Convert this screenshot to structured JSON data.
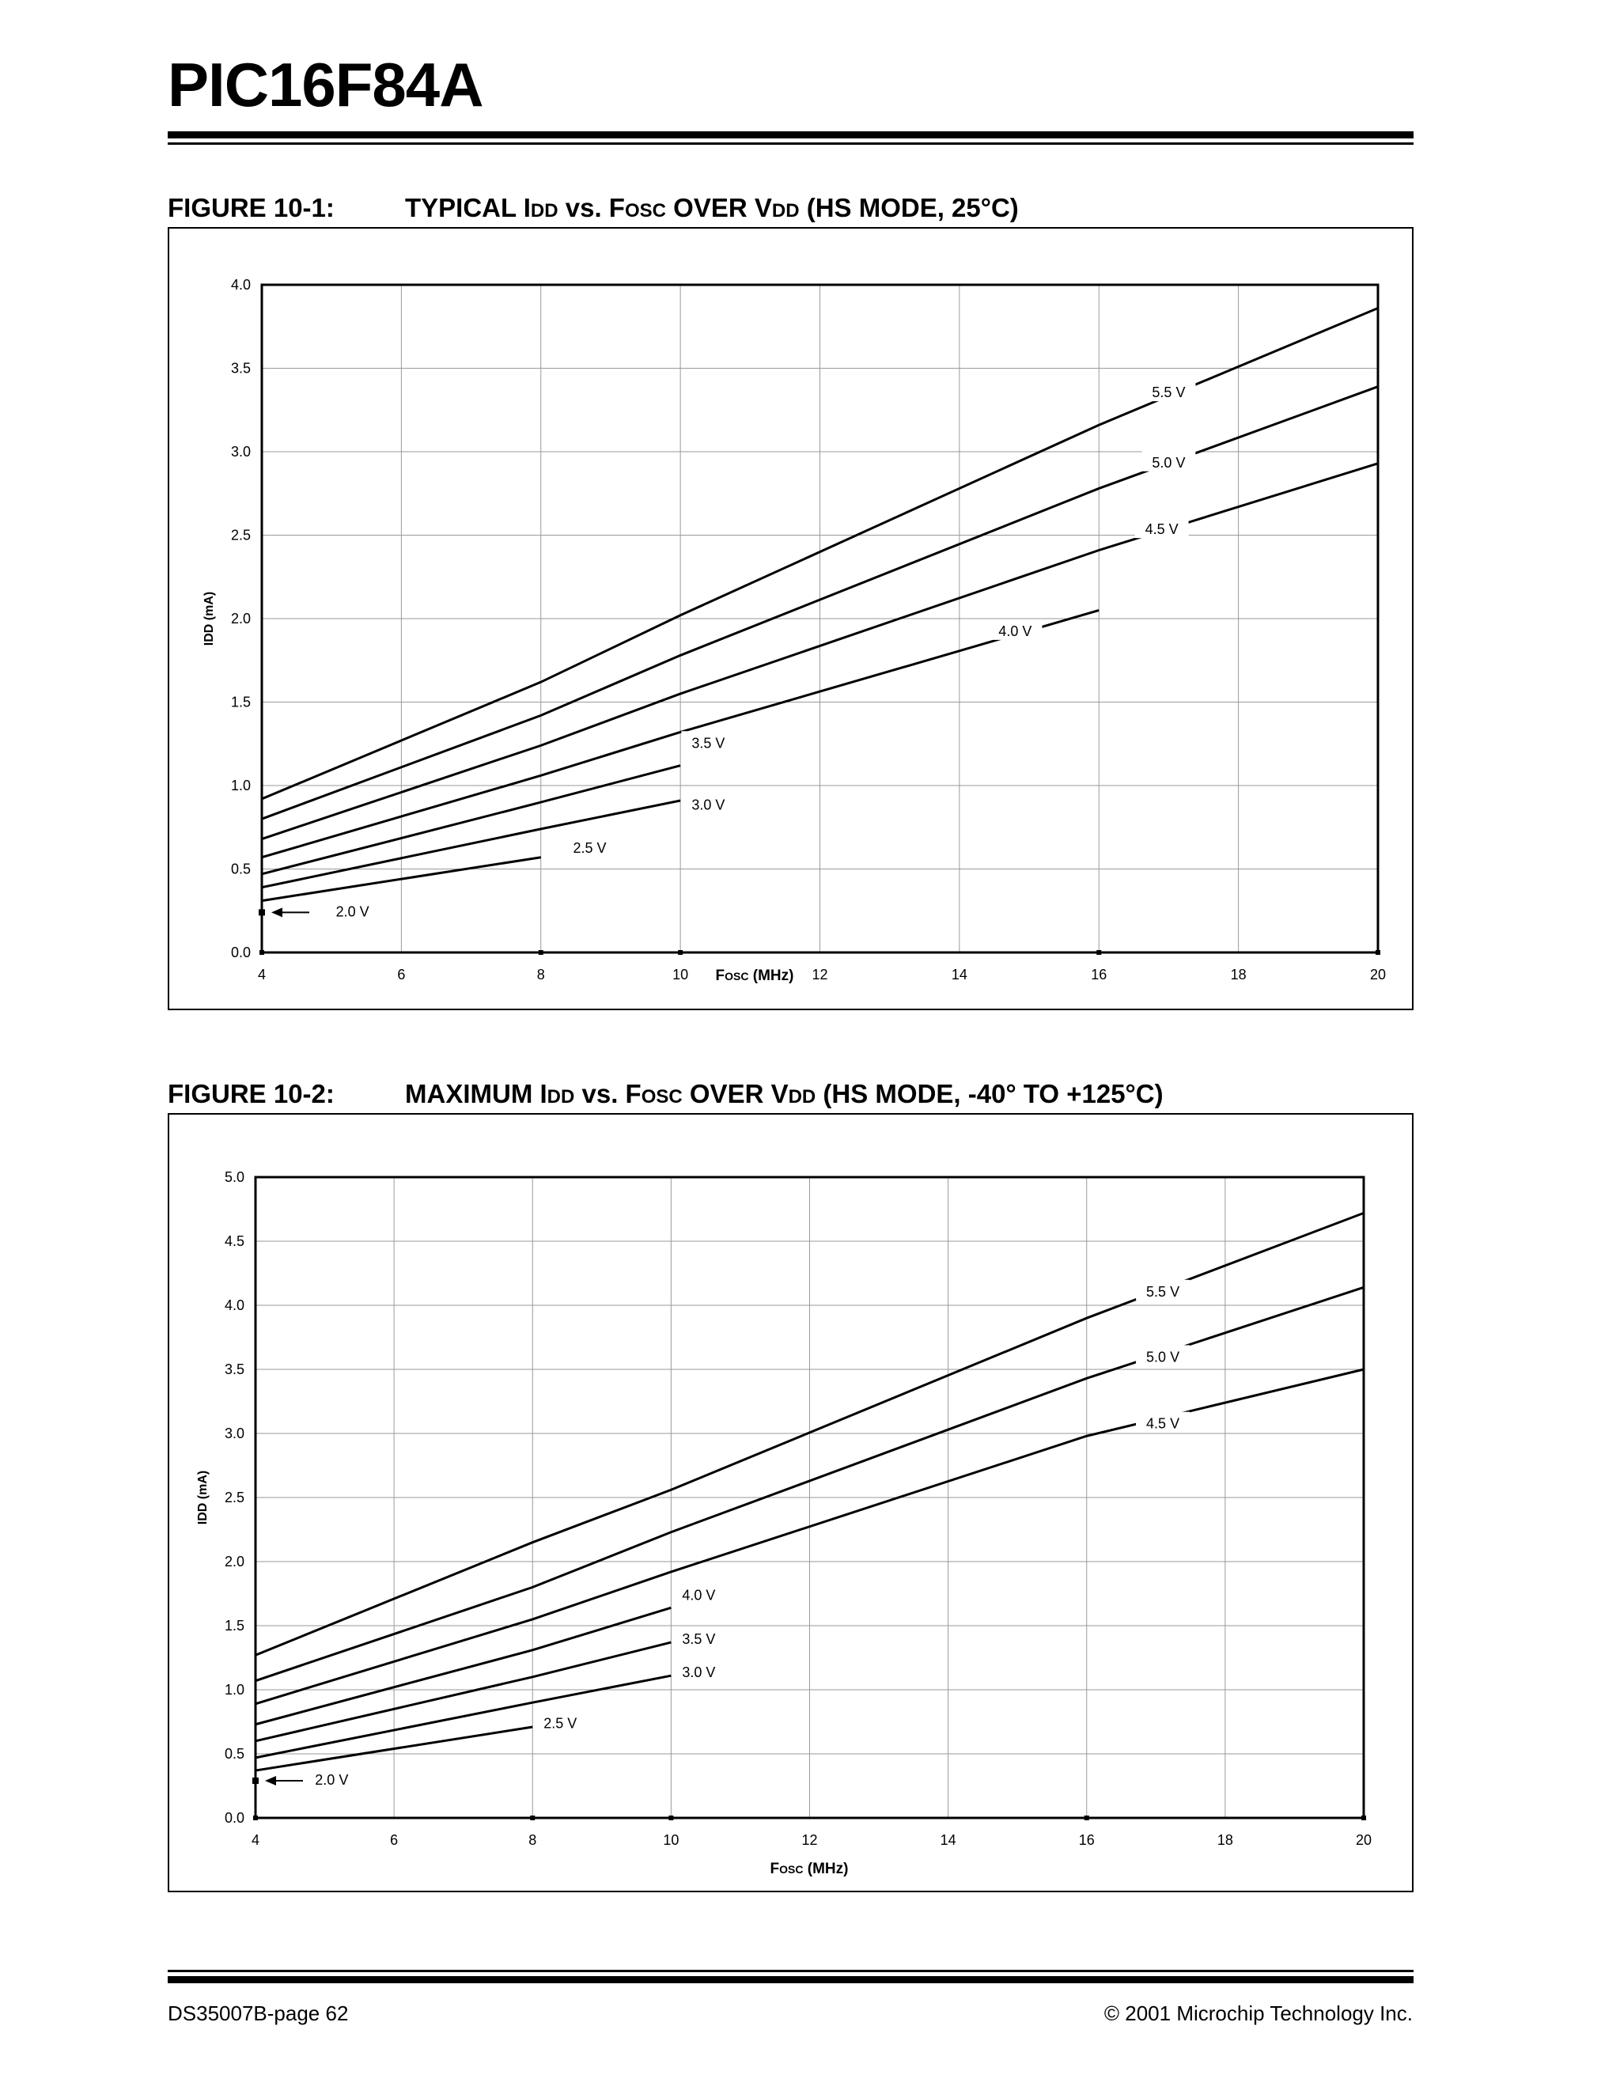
{
  "document": {
    "title": "PIC16F84A",
    "footer_left": "DS35007B-page 62",
    "footer_right": "© 2001 Microchip Technology Inc."
  },
  "figures": [
    {
      "number": "FIGURE 10-1:",
      "caption_parts": [
        "TYPICAL I",
        "DD",
        " vs. F",
        "OSC",
        " OVER V",
        "DD",
        " (HS MODE, 25°C)"
      ]
    },
    {
      "number": "FIGURE 10-2:",
      "caption_parts": [
        "MAXIMUM I",
        "DD",
        " vs. F",
        "OSC",
        " OVER V",
        "DD",
        " (HS MODE,  -40° TO +125°C)"
      ]
    }
  ],
  "chart_data": [
    {
      "type": "line",
      "title": "TYPICAL IDD vs. FOSC OVER VDD (HS MODE, 25°C)",
      "xlabel": "Fosc (MHz)",
      "ylabel": "IDD (mA)",
      "xlim": [
        4,
        20
      ],
      "ylim": [
        0,
        4.0
      ],
      "xticks": [
        4,
        6,
        8,
        10,
        12,
        14,
        16,
        18,
        20
      ],
      "yticks": [
        0.0,
        0.5,
        1.0,
        1.5,
        2.0,
        2.5,
        3.0,
        3.5,
        4.0
      ],
      "ytick_labels": [
        "0.0",
        "0.5",
        "1.0",
        "1.5",
        "2.0",
        "2.5",
        "3.0",
        "3.5",
        "4.0"
      ],
      "grid": true,
      "series": [
        {
          "name": "2.0 V",
          "x": [
            4
          ],
          "y": [
            0.24
          ]
        },
        {
          "name": "2.5 V",
          "x": [
            4,
            8
          ],
          "y": [
            0.31,
            0.57
          ]
        },
        {
          "name": "3.0 V",
          "x": [
            4,
            8,
            10
          ],
          "y": [
            0.39,
            0.74,
            0.91
          ]
        },
        {
          "name": "3.5 V",
          "x": [
            4,
            8,
            10
          ],
          "y": [
            0.47,
            0.9,
            1.12
          ]
        },
        {
          "name": "4.0 V",
          "x": [
            4,
            8,
            10,
            16
          ],
          "y": [
            0.57,
            1.06,
            1.32,
            2.05
          ]
        },
        {
          "name": "4.5 V",
          "x": [
            4,
            8,
            10,
            16,
            20
          ],
          "y": [
            0.68,
            1.24,
            1.55,
            2.41,
            2.93
          ]
        },
        {
          "name": "5.0 V",
          "x": [
            4,
            8,
            10,
            16,
            20
          ],
          "y": [
            0.8,
            1.42,
            1.78,
            2.78,
            3.39
          ]
        },
        {
          "name": "5.5 V",
          "x": [
            4,
            8,
            10,
            16,
            20
          ],
          "y": [
            0.92,
            1.62,
            2.02,
            3.16,
            3.86
          ]
        }
      ],
      "annotations": [
        {
          "text": "2.0 V",
          "x": 5.3,
          "y": 0.24
        },
        {
          "text": "2.5 V",
          "x": 8.7,
          "y": 0.62
        },
        {
          "text": "3.0 V",
          "x": 10.4,
          "y": 0.88
        },
        {
          "text": "3.5 V",
          "x": 10.4,
          "y": 1.25
        },
        {
          "text": "4.0 V",
          "x": 14.8,
          "y": 1.92
        },
        {
          "text": "4.5 V",
          "x": 16.9,
          "y": 2.53
        },
        {
          "text": "5.0 V",
          "x": 17.0,
          "y": 2.93
        },
        {
          "text": "5.5 V",
          "x": 17.0,
          "y": 3.35
        }
      ]
    },
    {
      "type": "line",
      "title": "MAXIMUM IDD vs. FOSC OVER VDD (HS MODE,  -40° TO +125°C)",
      "xlabel": "Fosc (MHz)",
      "ylabel": "IDD (mA)",
      "xlim": [
        4,
        20
      ],
      "ylim": [
        0,
        5.0
      ],
      "xticks": [
        4,
        6,
        8,
        10,
        12,
        14,
        16,
        18,
        20
      ],
      "yticks": [
        0.0,
        0.5,
        1.0,
        1.5,
        2.0,
        2.5,
        3.0,
        3.5,
        4.0,
        4.5,
        5.0
      ],
      "ytick_labels": [
        "0.0",
        "0.5",
        "1.0",
        "1.5",
        "2.0",
        "2.5",
        "3.0",
        "3.5",
        "4.0",
        "4.5",
        "5.0"
      ],
      "grid": true,
      "series": [
        {
          "name": "2.0 V",
          "x": [
            4
          ],
          "y": [
            0.29
          ]
        },
        {
          "name": "2.5 V",
          "x": [
            4,
            8
          ],
          "y": [
            0.37,
            0.71
          ]
        },
        {
          "name": "3.0 V",
          "x": [
            4,
            8,
            10
          ],
          "y": [
            0.47,
            0.9,
            1.11
          ]
        },
        {
          "name": "3.5 V",
          "x": [
            4,
            8,
            10
          ],
          "y": [
            0.6,
            1.1,
            1.37
          ]
        },
        {
          "name": "4.0 V",
          "x": [
            4,
            8,
            10
          ],
          "y": [
            0.73,
            1.31,
            1.64
          ]
        },
        {
          "name": "4.5 V",
          "x": [
            4,
            8,
            10,
            16,
            20
          ],
          "y": [
            0.89,
            1.55,
            1.92,
            2.98,
            3.5
          ]
        },
        {
          "name": "5.0 V",
          "x": [
            4,
            8,
            10,
            16,
            20
          ],
          "y": [
            1.07,
            1.8,
            2.23,
            3.43,
            4.14
          ]
        },
        {
          "name": "5.5 V",
          "x": [
            4,
            8,
            10,
            16,
            20
          ],
          "y": [
            1.27,
            2.15,
            2.56,
            3.9,
            4.72
          ]
        }
      ],
      "annotations": [
        {
          "text": "2.0 V",
          "x": 5.1,
          "y": 0.29
        },
        {
          "text": "2.5 V",
          "x": 8.4,
          "y": 0.73
        },
        {
          "text": "3.0 V",
          "x": 10.4,
          "y": 1.13
        },
        {
          "text": "3.5 V",
          "x": 10.4,
          "y": 1.39
        },
        {
          "text": "4.0 V",
          "x": 10.4,
          "y": 1.73
        },
        {
          "text": "4.5 V",
          "x": 17.1,
          "y": 3.07
        },
        {
          "text": "5.0 V",
          "x": 17.1,
          "y": 3.59
        },
        {
          "text": "5.5 V",
          "x": 17.1,
          "y": 4.1
        }
      ]
    }
  ]
}
